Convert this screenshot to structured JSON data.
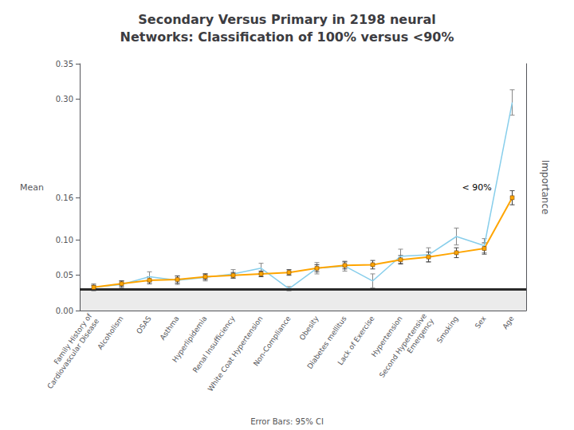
{
  "chart_data": {
    "type": "line",
    "title": "Secondary Versus Primary in 2198 neural\nNetworks: Classification of 100% versus <90%",
    "ylabel": "Mean",
    "y2label": "Importance",
    "categories": [
      "Family History of\nCardiovascular Disease",
      "Alcoholism",
      "OSAS",
      "Asthma",
      "Hyperlipidemia",
      "Renal Insufficiency",
      "White Coat Hypertension",
      "Non-Compliance",
      "Obesity",
      "Diabetes mellitus",
      "Lack of Exercise",
      "Hypertension",
      "Second Hypertensive\nEmergency",
      "Smoking",
      "Sex",
      "Age"
    ],
    "series": [
      {
        "color": "#87CEEB",
        "marker": "none",
        "values": [
          0.033,
          0.037,
          0.048,
          0.043,
          0.047,
          0.052,
          0.06,
          0.031,
          0.06,
          0.063,
          0.042,
          0.077,
          0.079,
          0.105,
          0.092,
          0.295
        ],
        "errors": [
          0.005,
          0.005,
          0.007,
          0.006,
          0.005,
          0.006,
          0.007,
          0.003,
          0.008,
          0.007,
          0.01,
          0.01,
          0.01,
          0.012,
          0.01,
          0.018
        ]
      },
      {
        "color": "#FFA500",
        "marker": "square",
        "values": [
          0.033,
          0.038,
          0.043,
          0.044,
          0.048,
          0.05,
          0.052,
          0.054,
          0.06,
          0.064,
          0.065,
          0.072,
          0.076,
          0.082,
          0.088,
          0.16
        ],
        "errors": [
          0.003,
          0.004,
          0.005,
          0.005,
          0.004,
          0.004,
          0.004,
          0.004,
          0.005,
          0.005,
          0.006,
          0.006,
          0.007,
          0.007,
          0.008,
          0.01
        ]
      }
    ],
    "reference_line": {
      "y": 0.032,
      "color": "#2a2a2a"
    },
    "ylim": [
      0,
      0.35
    ],
    "yticks": [
      {
        "value": 0,
        "label": "0.00"
      },
      0.05,
      {
        "value": 0.1,
        "label": "0.10"
      },
      0.16,
      {
        "value": 0.3,
        "label": "0.30"
      },
      0.35
    ],
    "annotations": [
      {
        "text": "< 90%",
        "x": 13.2,
        "y": 0.168
      },
      {
        "text": "Error Bars: 95% CI"
      }
    ],
    "grid": false
  }
}
